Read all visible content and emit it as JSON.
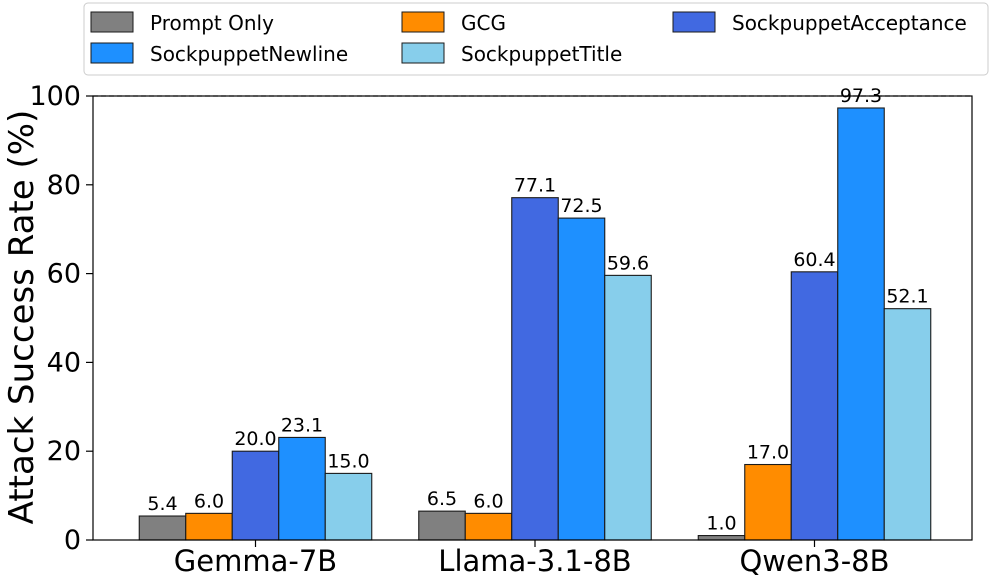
{
  "chart_data": {
    "type": "bar",
    "title": "",
    "xlabel": "",
    "ylabel": "Attack Success Rate (%)",
    "ylim": [
      0,
      100
    ],
    "yticks": [
      "0",
      "20",
      "40",
      "60",
      "80",
      "100"
    ],
    "reference_line": 100,
    "categories": [
      "Gemma-7B",
      "Llama-3.1-8B",
      "Qwen3-8B"
    ],
    "legend_position": "top",
    "series": [
      {
        "name": "Prompt Only",
        "color": "#808080",
        "values": [
          5.4,
          6.5,
          1.0
        ],
        "labels": [
          "5.4",
          "6.5",
          "1.0"
        ]
      },
      {
        "name": "GCG",
        "color": "#ff8c00",
        "values": [
          6.0,
          6.0,
          17.0
        ],
        "labels": [
          "6.0",
          "6.0",
          "17.0"
        ]
      },
      {
        "name": "SockpuppetAcceptance",
        "color": "#4169e1",
        "values": [
          20.0,
          77.1,
          60.4
        ],
        "labels": [
          "20.0",
          "77.1",
          "60.4"
        ]
      },
      {
        "name": "SockpuppetNewline",
        "color": "#1e90ff",
        "values": [
          23.1,
          72.5,
          97.3
        ],
        "labels": [
          "23.1",
          "72.5",
          "97.3"
        ]
      },
      {
        "name": "SockpuppetTitle",
        "color": "#87ceeb",
        "values": [
          15.0,
          59.6,
          52.1
        ],
        "labels": [
          "15.0",
          "59.6",
          "52.1"
        ]
      }
    ]
  }
}
